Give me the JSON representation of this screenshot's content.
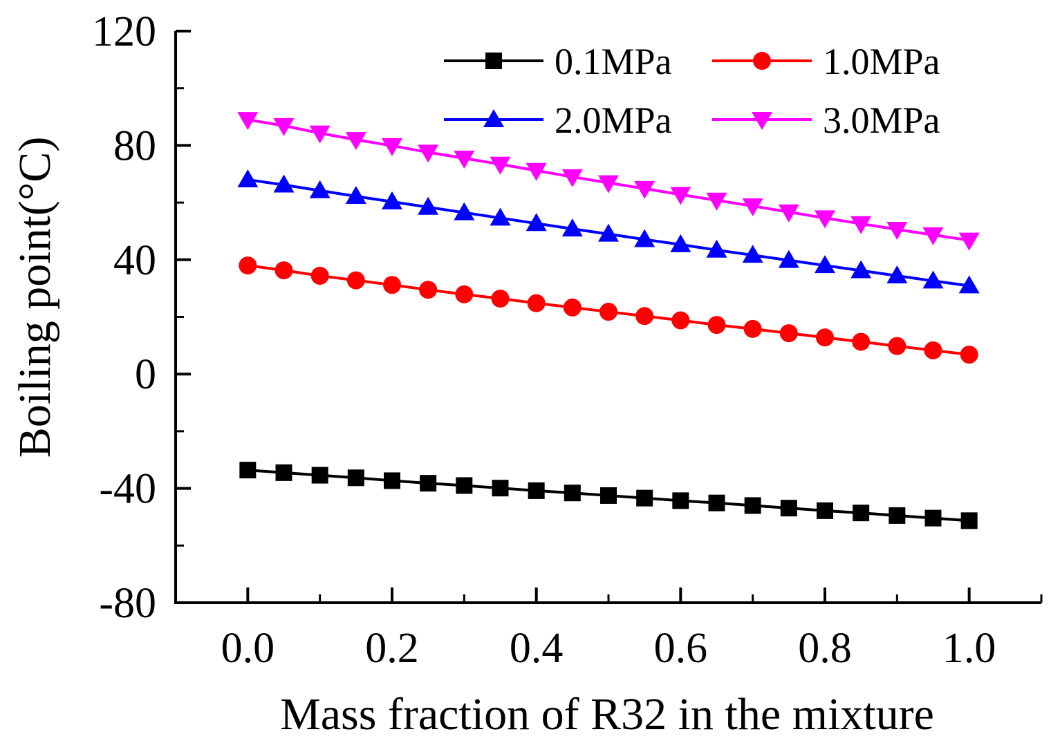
{
  "chart_data": {
    "type": "line",
    "title": "",
    "xlabel": "Mass fraction of R32 in the mixture",
    "ylabel": "Boiling point(°C)",
    "xlim": [
      -0.1,
      1.1
    ],
    "ylim": [
      -80,
      120
    ],
    "x_major_ticks": [
      0.0,
      0.2,
      0.4,
      0.6,
      0.8,
      1.0
    ],
    "x_tick_labels": [
      "0.0",
      "0.2",
      "0.4",
      "0.6",
      "0.8",
      "1.0"
    ],
    "y_major_ticks": [
      -80,
      -40,
      0,
      40,
      80,
      120
    ],
    "y_tick_labels": [
      "-80",
      "-40",
      "0",
      "40",
      "80",
      "120"
    ],
    "grid": false,
    "legend_position": "top-right",
    "x": [
      0.0,
      0.05,
      0.1,
      0.15,
      0.2,
      0.25,
      0.3,
      0.35,
      0.4,
      0.45,
      0.5,
      0.55,
      0.6,
      0.65,
      0.7,
      0.75,
      0.8,
      0.85,
      0.9,
      0.95,
      1.0
    ],
    "series": [
      {
        "name": "0.1MPa",
        "color": "#000000",
        "marker": "square",
        "values": [
          -33.6,
          -34.5,
          -35.4,
          -36.3,
          -37.3,
          -38.2,
          -39.0,
          -39.9,
          -40.8,
          -41.6,
          -42.5,
          -43.4,
          -44.3,
          -45.1,
          -46.0,
          -46.9,
          -47.8,
          -48.6,
          -49.5,
          -50.4,
          -51.3
        ]
      },
      {
        "name": "1.0MPa",
        "color": "#ff0000",
        "marker": "circle",
        "values": [
          38.0,
          36.3,
          34.4,
          32.8,
          31.2,
          29.5,
          27.9,
          26.4,
          24.8,
          23.3,
          21.8,
          20.3,
          18.8,
          17.2,
          15.8,
          14.3,
          12.8,
          11.3,
          9.8,
          8.3,
          6.8
        ]
      },
      {
        "name": "2.0MPa",
        "color": "#0000ff",
        "marker": "triangle-up",
        "values": [
          68.0,
          66.2,
          64.2,
          62.2,
          60.3,
          58.4,
          56.5,
          54.6,
          52.7,
          50.8,
          49.0,
          47.1,
          45.3,
          43.4,
          41.6,
          39.8,
          38.0,
          36.2,
          34.4,
          32.6,
          30.9
        ]
      },
      {
        "name": "3.0MPa",
        "color": "#ff00ff",
        "marker": "triangle-down",
        "values": [
          89.0,
          86.9,
          84.3,
          82.0,
          79.9,
          77.6,
          75.5,
          73.4,
          71.2,
          69.0,
          66.9,
          64.9,
          62.8,
          60.8,
          58.8,
          56.7,
          54.6,
          52.6,
          50.6,
          48.7,
          46.8
        ]
      }
    ]
  }
}
